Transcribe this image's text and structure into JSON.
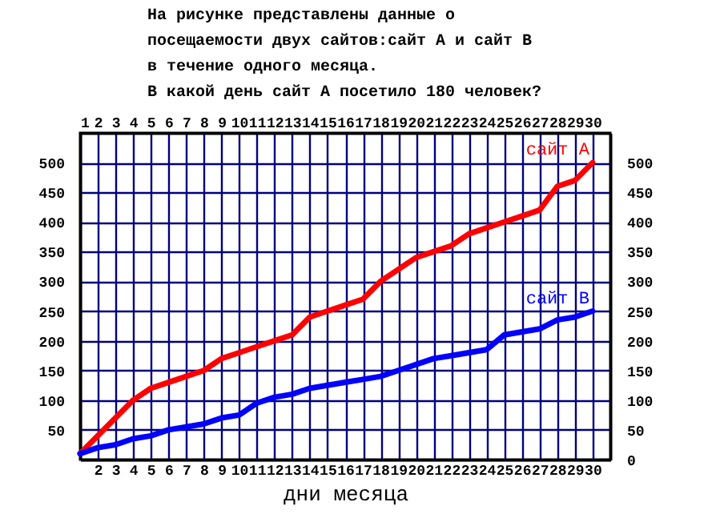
{
  "chart_data": {
    "type": "line",
    "title": [
      "На рисунке представлены данные о",
      "посещаемости двух сайтов:сайт А и сайт В",
      "в течение одного месяца.",
      "В какой день сайт А посетило 180 человек?"
    ],
    "xlabel": "дни месяца",
    "x": [
      1,
      2,
      3,
      4,
      5,
      6,
      7,
      8,
      9,
      10,
      11,
      12,
      13,
      14,
      15,
      16,
      17,
      18,
      19,
      20,
      21,
      22,
      23,
      24,
      25,
      26,
      27,
      28,
      29,
      30
    ],
    "series": [
      {
        "name": "сайт А",
        "color": "#ff0000",
        "values": [
          10,
          40,
          70,
          100,
          120,
          130,
          140,
          150,
          170,
          180,
          190,
          200,
          210,
          240,
          250,
          260,
          270,
          300,
          320,
          340,
          350,
          360,
          380,
          390,
          400,
          410,
          420,
          460,
          470,
          500
        ]
      },
      {
        "name": "сайт В",
        "color": "#0000ff",
        "values": [
          10,
          20,
          25,
          35,
          40,
          50,
          55,
          60,
          70,
          75,
          95,
          105,
          110,
          120,
          125,
          130,
          135,
          140,
          150,
          160,
          170,
          175,
          180,
          185,
          210,
          215,
          220,
          235,
          240,
          250
        ]
      }
    ],
    "xlim": [
      1,
      31
    ],
    "xticks": [
      {
        "value": 1,
        "label": null
      },
      2,
      3,
      4,
      5,
      6,
      7,
      8,
      9,
      10,
      11,
      12,
      13,
      14,
      15,
      16,
      17,
      18,
      19,
      20,
      21,
      22,
      23,
      24,
      25,
      26,
      27,
      28,
      29,
      30
    ],
    "x2lim": [
      1,
      31
    ],
    "x2ticks": [
      1,
      2,
      3,
      4,
      5,
      6,
      7,
      8,
      9,
      10,
      11,
      12,
      13,
      14,
      15,
      16,
      17,
      18,
      19,
      20,
      21,
      22,
      23,
      24,
      25,
      26,
      27,
      28,
      29,
      30
    ],
    "ylim": [
      0,
      550
    ],
    "yticks": [
      {
        "value": 0,
        "label": null
      },
      50,
      100,
      150,
      200,
      250,
      300,
      350,
      400,
      450,
      500
    ],
    "y2lim": [
      0,
      550
    ],
    "y2ticks": [
      0,
      50,
      100,
      150,
      200,
      250,
      300,
      350,
      400,
      450,
      500
    ],
    "grid": true,
    "legend": false,
    "line_style": "solid",
    "marker": "none"
  }
}
